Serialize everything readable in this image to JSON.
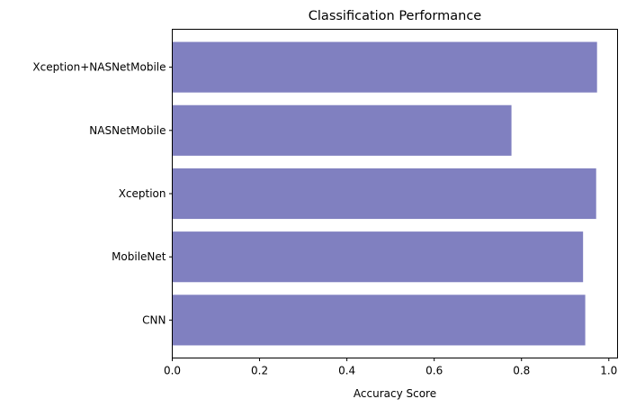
{
  "chart_data": {
    "type": "bar",
    "orientation": "horizontal",
    "title": "Classification Performance",
    "xlabel": "Accuracy Score",
    "ylabel": "",
    "categories": [
      "CNN",
      "MobileNet",
      "Xception",
      "NASNetMobile",
      "Xception+NASNetMobile"
    ],
    "values": [
      0.946,
      0.941,
      0.971,
      0.777,
      0.973
    ],
    "xlim": [
      0,
      1.02
    ],
    "xticks": [
      0.0,
      0.2,
      0.4,
      0.6,
      0.8,
      1.0
    ],
    "xtick_labels": [
      "0.0",
      "0.2",
      "0.4",
      "0.6",
      "0.8",
      "1.0"
    ],
    "grid": false,
    "bar_color": "#8080c0"
  }
}
